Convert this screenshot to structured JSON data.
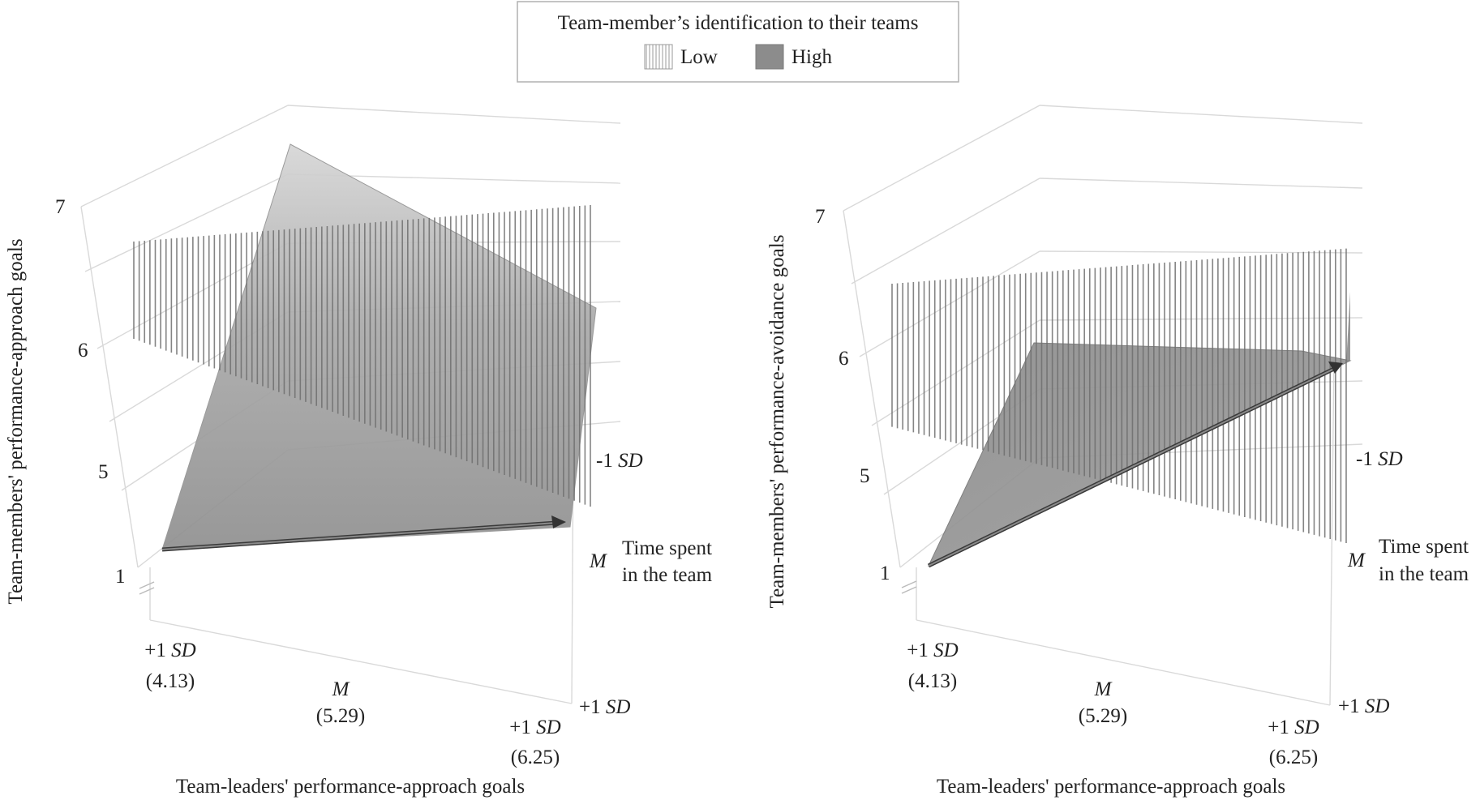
{
  "legend": {
    "title": "Team-member’s identification to their teams",
    "items": [
      {
        "label": "Low",
        "pattern": "vertical-lines"
      },
      {
        "label": "High",
        "fill": "#8c8c8c"
      }
    ]
  },
  "chart_data": [
    {
      "type": "surface",
      "xlabel": "Team-leaders' performance-approach goals",
      "ylabel": "Team-members' performance-approach goals",
      "depth_label_lines": [
        "Time spent",
        "in the team"
      ],
      "x_ticks": [
        {
          "lines": [
            "+1 SD",
            "(4.13)"
          ],
          "italic": "SD"
        },
        {
          "lines": [
            "M",
            "(5.29)"
          ],
          "italic": "M"
        },
        {
          "lines": [
            "+1 SD",
            "(6.25)"
          ],
          "italic": "SD"
        }
      ],
      "depth_ticks": [
        {
          "prefix": "-1 ",
          "term": "SD"
        },
        {
          "prefix": "",
          "term": "M"
        },
        {
          "prefix": "+1 ",
          "term": "SD"
        }
      ],
      "z_ticks": [
        "1",
        "5",
        "6",
        "7"
      ],
      "zlim": [
        4,
        7
      ],
      "surfaces": [
        {
          "name": "Low",
          "style": "hatched",
          "corners": {
            "x_low_t_low": 6.3,
            "x_high_t_low": 6.3,
            "x_low_t_high": 6.3,
            "x_high_t_high": 4.5
          }
        },
        {
          "name": "High",
          "style": "solid",
          "corners": {
            "x_low_t_low": 7.0,
            "x_high_t_low": 6.1,
            "x_low_t_high": 4.2,
            "x_high_t_high": 4.6
          }
        }
      ]
    },
    {
      "type": "surface",
      "xlabel": "Team-leaders' performance-approach goals",
      "ylabel": "Team-members' performance-avoidance goals",
      "depth_label_lines": [
        "Time spent",
        "in the team"
      ],
      "x_ticks": [
        {
          "lines": [
            "+1 SD",
            "(4.13)"
          ],
          "italic": "SD"
        },
        {
          "lines": [
            "M",
            "(5.29)"
          ],
          "italic": "M"
        },
        {
          "lines": [
            "+1 SD",
            "(6.25)"
          ],
          "italic": "SD"
        }
      ],
      "depth_ticks": [
        {
          "prefix": "-1 ",
          "term": "SD"
        },
        {
          "prefix": "",
          "term": "M"
        },
        {
          "prefix": "+1 ",
          "term": "SD"
        }
      ],
      "z_ticks": [
        "1",
        "5",
        "6",
        "7"
      ],
      "zlim": [
        4,
        7
      ],
      "surfaces": [
        {
          "name": "Low",
          "style": "hatched",
          "corners": {
            "x_low_t_low": 6.1,
            "x_high_t_low": 5.9,
            "x_low_t_high": 5.9,
            "x_high_t_high": 4.3
          }
        },
        {
          "name": "High",
          "style": "solid",
          "corners": {
            "x_low_t_low": 6.0,
            "x_high_t_low": 6.6,
            "x_low_t_high": 4.2,
            "x_high_t_high": 6.4
          }
        }
      ]
    }
  ]
}
